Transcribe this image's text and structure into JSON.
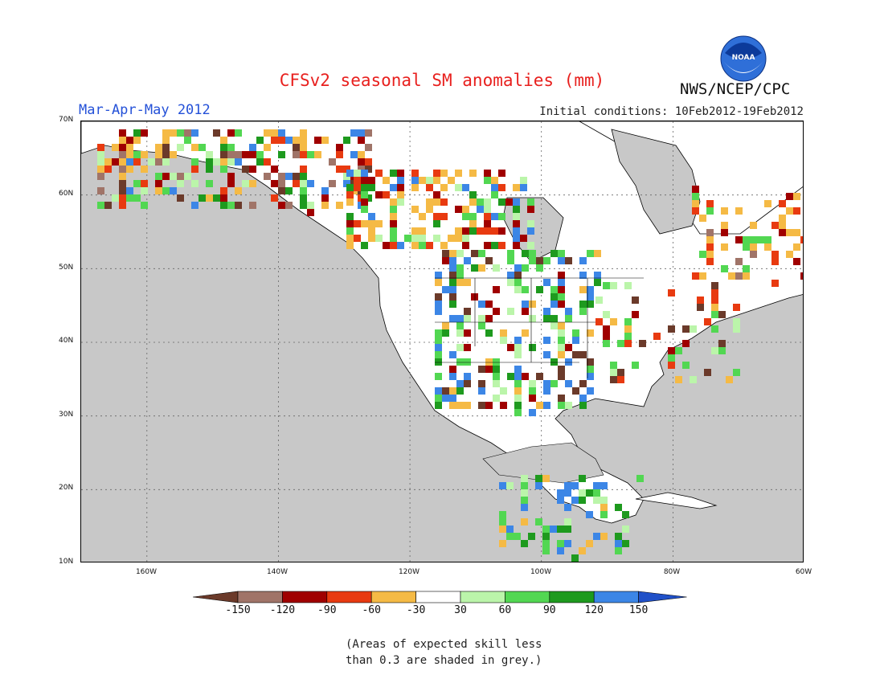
{
  "header": {
    "title": "CFSv2 seasonal SM anomalies (mm)",
    "period": "Mar-Apr-May 2012",
    "initial_conditions": "Initial conditions: 10Feb2012-19Feb2012",
    "organization": "NWS/NCEP/CPC",
    "logo_text": "NOAA"
  },
  "map": {
    "lat_labels": [
      "70N",
      "60N",
      "50N",
      "40N",
      "30N",
      "20N",
      "10N"
    ],
    "lon_labels": [
      "160W",
      "140W",
      "120W",
      "100W",
      "80W",
      "60W"
    ],
    "lat_range": [
      10,
      70
    ],
    "lon_range": [
      -170,
      -60
    ],
    "masked_color": "#c8c8c8"
  },
  "colorbar": {
    "ticks": [
      "-150",
      "-120",
      "-90",
      "-60",
      "-30",
      "30",
      "60",
      "90",
      "120",
      "150"
    ],
    "colors": [
      "#6b3a2a",
      "#a07468",
      "#a00000",
      "#e83a10",
      "#f5ba45",
      "#ffffff",
      "#bbf5aa",
      "#52d752",
      "#1e9a1e",
      "#3c86e6",
      "#2050c8"
    ]
  },
  "footnote": {
    "line1": "(Areas of expected skill less",
    "line2": "than 0.3 are shaded in grey.)"
  }
}
